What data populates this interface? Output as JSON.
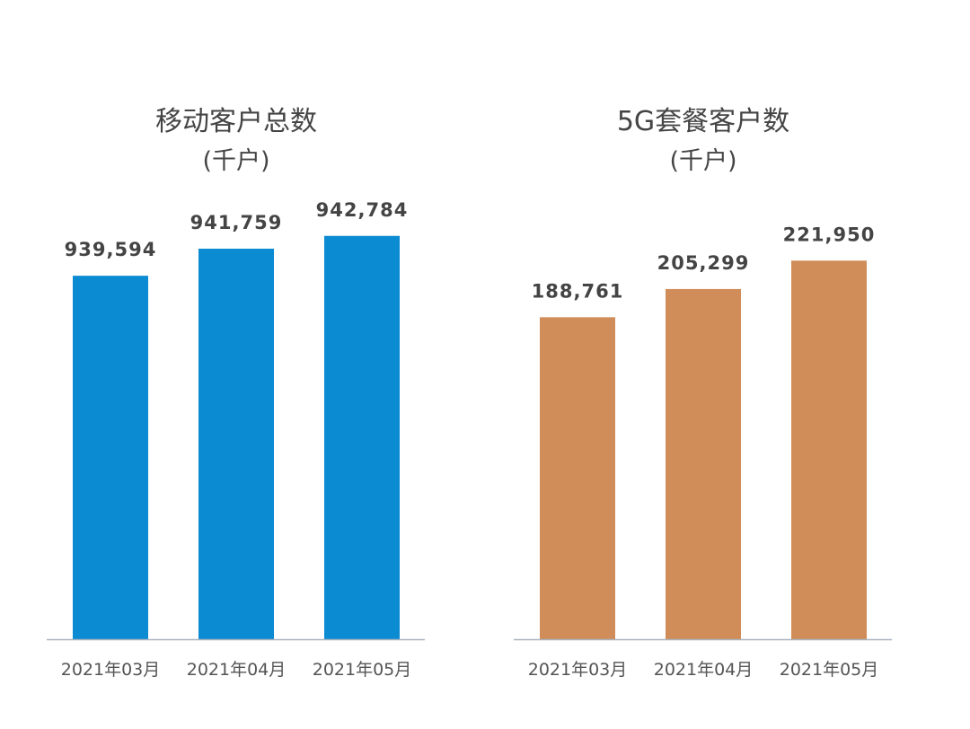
{
  "chart_data": [
    {
      "type": "bar",
      "title": "移动客户总数",
      "subtitle": "(千户)",
      "categories": [
        "2021年03月",
        "2021年04月",
        "2021年05月"
      ],
      "values": [
        939594,
        941759,
        942784
      ],
      "data_labels": [
        "939,594",
        "941,759",
        "942,784"
      ],
      "ylim": [
        910500,
        946000
      ],
      "grid": false,
      "color": "#0a8bd2"
    },
    {
      "type": "bar",
      "title": "5G套餐客户数",
      "subtitle": "(千户)",
      "categories": [
        "2021年03月",
        "2021年04月",
        "2021年05月"
      ],
      "values": [
        188761,
        205299,
        221950
      ],
      "data_labels": [
        "188,761",
        "205,299",
        "221,950"
      ],
      "ylim": [
        0,
        260000
      ],
      "grid": false,
      "color": "#d08d59"
    }
  ]
}
